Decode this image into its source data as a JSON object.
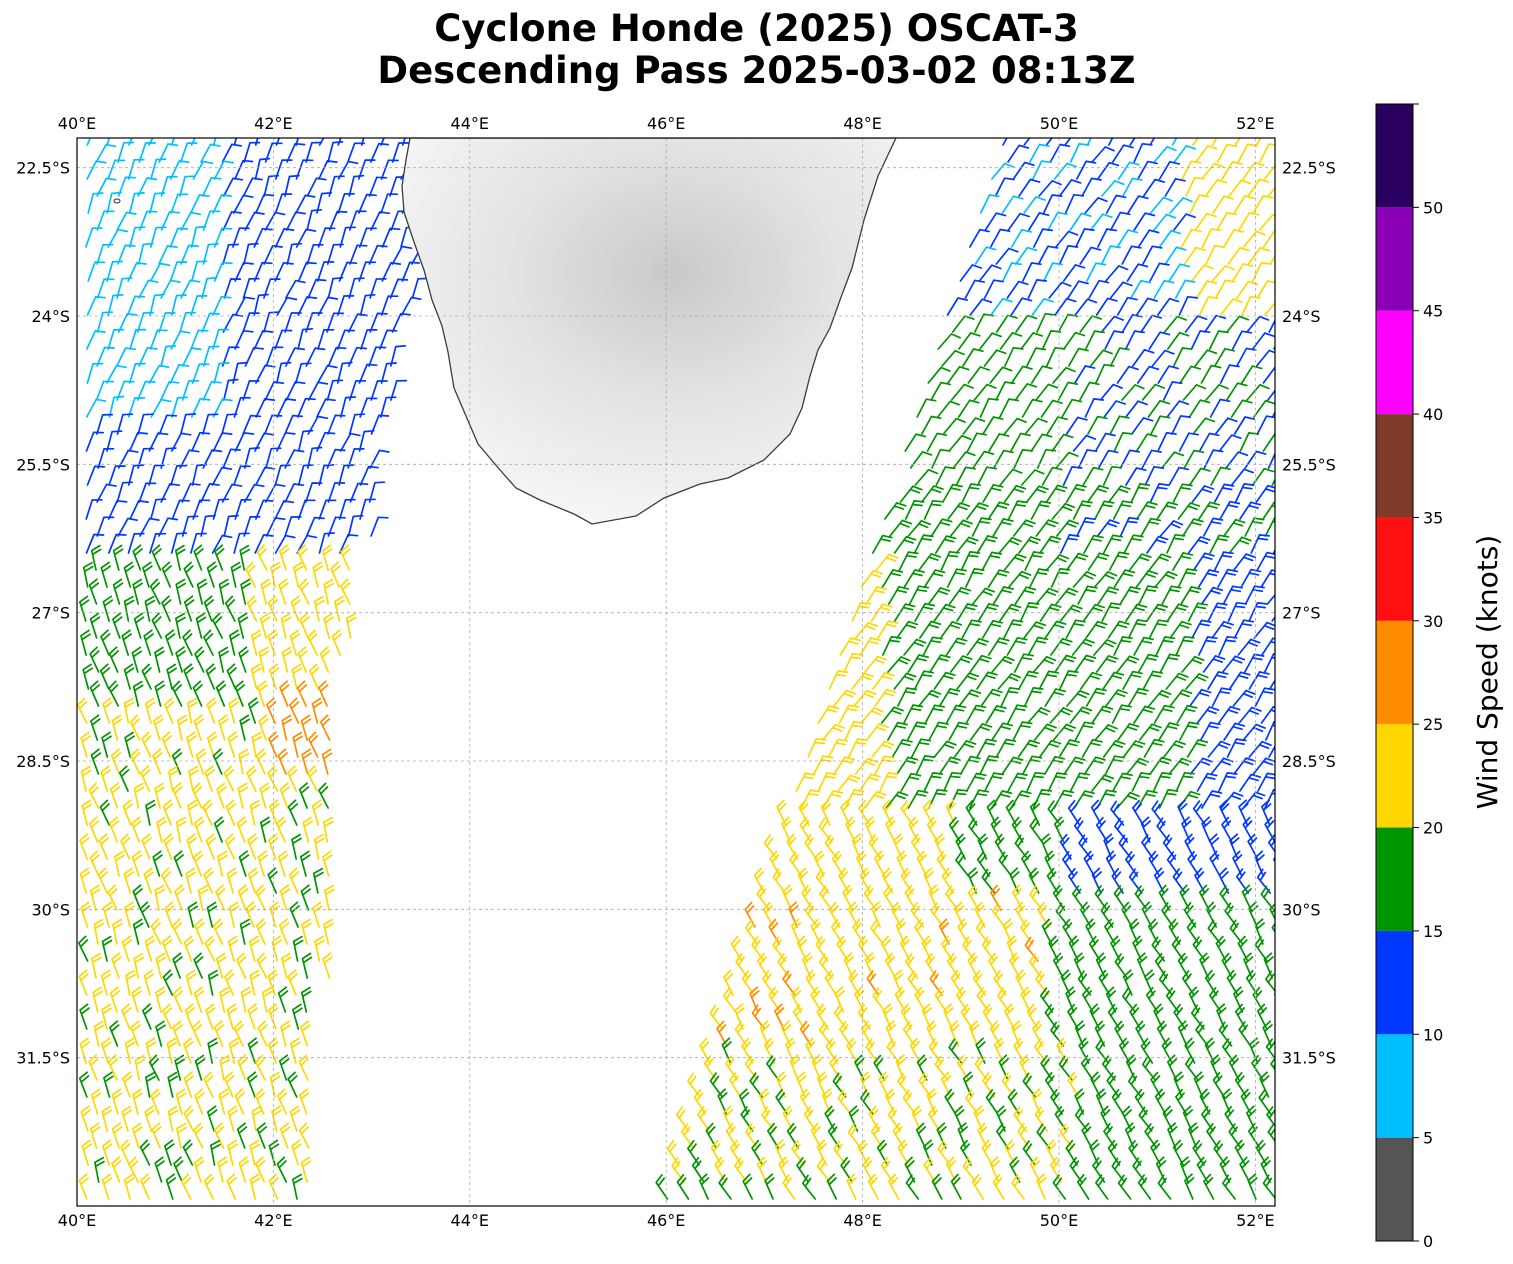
{
  "title_line1": "Cyclone Honde (2025) OSCAT-3",
  "title_line2": "Descending Pass 2025-03-02 08:13Z",
  "map": {
    "lon_range": [
      40,
      52.2
    ],
    "lat_range": [
      -33.0,
      -22.2
    ],
    "lon_ticks": [
      {
        "value": 40,
        "label": "40°E"
      },
      {
        "value": 42,
        "label": "42°E"
      },
      {
        "value": 44,
        "label": "44°E"
      },
      {
        "value": 46,
        "label": "46°E"
      },
      {
        "value": 48,
        "label": "48°E"
      },
      {
        "value": 50,
        "label": "50°E"
      },
      {
        "value": 52,
        "label": "52°E"
      }
    ],
    "lat_ticks": [
      {
        "value": -22.5,
        "label": "22.5°S"
      },
      {
        "value": -24,
        "label": "24°S"
      },
      {
        "value": -25.5,
        "label": "25.5°S"
      },
      {
        "value": -27,
        "label": "27°S"
      },
      {
        "value": -28.5,
        "label": "28.5°S"
      },
      {
        "value": -30,
        "label": "30°S"
      },
      {
        "value": -31.5,
        "label": "31.5°S"
      }
    ],
    "gridlines": true,
    "land": "Madagascar (southern tip), grayscale terrain"
  },
  "colorbar": {
    "label": "Wind Speed (knots)",
    "ticks": [
      "0",
      "5",
      "10",
      "15",
      "20",
      "25",
      "30",
      "35",
      "40",
      "45",
      "50"
    ],
    "bins": [
      {
        "from": 0,
        "to": 5,
        "color": "#555555"
      },
      {
        "from": 5,
        "to": 10,
        "color": "#00bfff"
      },
      {
        "from": 10,
        "to": 15,
        "color": "#0038ff"
      },
      {
        "from": 15,
        "to": 20,
        "color": "#009400"
      },
      {
        "from": 20,
        "to": 25,
        "color": "#ffd700"
      },
      {
        "from": 25,
        "to": 30,
        "color": "#ff8c00"
      },
      {
        "from": 30,
        "to": 35,
        "color": "#ff1010"
      },
      {
        "from": 35,
        "to": 40,
        "color": "#7f3b2a"
      },
      {
        "from": 40,
        "to": 45,
        "color": "#ff00ff"
      },
      {
        "from": 45,
        "to": 50,
        "color": "#8a00b4"
      },
      {
        "from": 50,
        "to": 55,
        "color": "#2a0060"
      }
    ]
  }
}
